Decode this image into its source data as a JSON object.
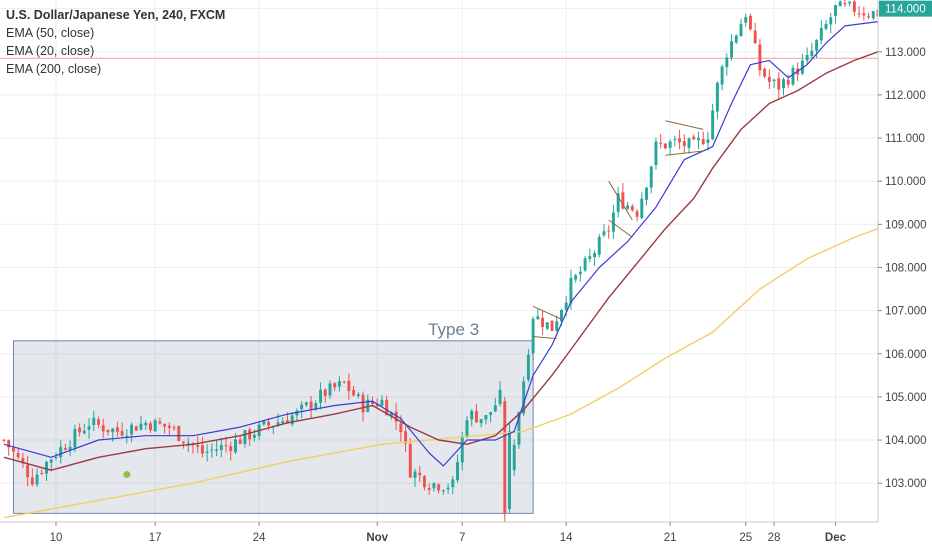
{
  "header": {
    "title": "U.S. Dollar/Japanese Yen, 240, FXCM",
    "indicators": [
      "EMA (50, close)",
      "EMA (20, close)",
      "EMA (200, close)"
    ]
  },
  "chart_data": {
    "type": "candlestick",
    "ylim": [
      102.1,
      114.2
    ],
    "xlim": [
      0,
      185
    ],
    "y_ticks": [
      103,
      104,
      105,
      106,
      107,
      108,
      109,
      110,
      111,
      112,
      113,
      114
    ],
    "y_tick_labels": [
      "103.000",
      "104.000",
      "105.000",
      "106.000",
      "107.000",
      "108.000",
      "109.000",
      "110.000",
      "111.000",
      "112.000",
      "113.000",
      "114.000"
    ],
    "x_ticks": [
      {
        "label": "10",
        "x": 11,
        "bold": false
      },
      {
        "label": "17",
        "x": 32,
        "bold": false
      },
      {
        "label": "24",
        "x": 54,
        "bold": false
      },
      {
        "label": "Nov",
        "x": 79,
        "bold": true
      },
      {
        "label": "7",
        "x": 97,
        "bold": false
      },
      {
        "label": "14",
        "x": 119,
        "bold": false
      },
      {
        "label": "21",
        "x": 141,
        "bold": false
      },
      {
        "label": "25",
        "x": 157,
        "bold": false
      },
      {
        "label": "28",
        "x": 163,
        "bold": false
      },
      {
        "label": "Dec",
        "x": 176,
        "bold": true
      }
    ],
    "price_line": 112.85,
    "last_price_label": "114.000",
    "colors": {
      "up": "#26a69a",
      "down": "#ef5350",
      "ema20": "#3b3bd6",
      "ema50": "#9c3a43",
      "ema200": "#f2cf63",
      "price_line": "#f2a0a0"
    },
    "ohlc_anchors": [
      [
        0,
        104.0
      ],
      [
        6,
        103.1
      ],
      [
        10,
        103.6
      ],
      [
        18,
        104.4
      ],
      [
        24,
        104.2
      ],
      [
        30,
        104.4
      ],
      [
        35,
        104.3
      ],
      [
        42,
        103.7
      ],
      [
        48,
        103.9
      ],
      [
        55,
        104.3
      ],
      [
        62,
        104.6
      ],
      [
        68,
        105.1
      ],
      [
        72,
        105.3
      ],
      [
        76,
        104.8
      ],
      [
        80,
        104.9
      ],
      [
        84,
        104.3
      ],
      [
        86,
        103.3
      ],
      [
        90,
        103.0
      ],
      [
        95,
        102.95
      ],
      [
        98,
        104.6
      ],
      [
        102,
        104.5
      ],
      [
        105,
        105.0
      ],
      [
        106,
        102.3
      ],
      [
        108,
        104.0
      ],
      [
        110,
        105.4
      ],
      [
        112,
        106.9
      ],
      [
        116,
        106.6
      ],
      [
        120,
        107.6
      ],
      [
        124,
        108.2
      ],
      [
        128,
        108.9
      ],
      [
        130,
        109.6
      ],
      [
        134,
        109.3
      ],
      [
        136,
        110.0
      ],
      [
        138,
        110.8
      ],
      [
        142,
        110.9
      ],
      [
        146,
        110.8
      ],
      [
        149,
        111.1
      ],
      [
        151,
        112.2
      ],
      [
        153,
        113.0
      ],
      [
        157,
        113.9
      ],
      [
        160,
        112.6
      ],
      [
        162,
        112.3
      ],
      [
        164,
        112.2
      ],
      [
        167,
        112.5
      ],
      [
        170,
        112.8
      ],
      [
        172,
        113.2
      ],
      [
        174,
        113.6
      ],
      [
        176,
        114.0
      ],
      [
        180,
        114.0
      ],
      [
        183,
        113.9
      ],
      [
        185,
        113.9
      ]
    ],
    "ema20_points": [
      [
        0,
        103.9
      ],
      [
        10,
        103.6
      ],
      [
        20,
        104.0
      ],
      [
        30,
        104.1
      ],
      [
        40,
        104.1
      ],
      [
        50,
        104.3
      ],
      [
        60,
        104.6
      ],
      [
        70,
        104.8
      ],
      [
        78,
        104.9
      ],
      [
        84,
        104.5
      ],
      [
        90,
        103.7
      ],
      [
        93,
        103.4
      ],
      [
        98,
        104.0
      ],
      [
        104,
        104.0
      ],
      [
        108,
        104.2
      ],
      [
        112,
        105.5
      ],
      [
        116,
        106.2
      ],
      [
        120,
        107.2
      ],
      [
        126,
        108.0
      ],
      [
        132,
        108.6
      ],
      [
        138,
        109.4
      ],
      [
        144,
        110.5
      ],
      [
        150,
        110.8
      ],
      [
        154,
        111.8
      ],
      [
        158,
        112.7
      ],
      [
        162,
        112.8
      ],
      [
        166,
        112.4
      ],
      [
        170,
        112.7
      ],
      [
        174,
        113.2
      ],
      [
        178,
        113.6
      ],
      [
        185,
        113.7
      ]
    ],
    "ema50_points": [
      [
        0,
        103.6
      ],
      [
        10,
        103.3
      ],
      [
        20,
        103.6
      ],
      [
        30,
        103.8
      ],
      [
        40,
        103.9
      ],
      [
        50,
        104.1
      ],
      [
        60,
        104.4
      ],
      [
        70,
        104.6
      ],
      [
        78,
        104.8
      ],
      [
        86,
        104.3
      ],
      [
        92,
        104.0
      ],
      [
        98,
        103.9
      ],
      [
        104,
        104.1
      ],
      [
        110,
        104.7
      ],
      [
        116,
        105.5
      ],
      [
        122,
        106.4
      ],
      [
        128,
        107.3
      ],
      [
        134,
        108.1
      ],
      [
        140,
        108.9
      ],
      [
        146,
        109.6
      ],
      [
        150,
        110.3
      ],
      [
        156,
        111.2
      ],
      [
        162,
        111.8
      ],
      [
        168,
        112.1
      ],
      [
        174,
        112.5
      ],
      [
        180,
        112.8
      ],
      [
        185,
        113.0
      ]
    ],
    "ema200_points": [
      [
        0,
        102.2
      ],
      [
        20,
        102.6
      ],
      [
        40,
        103.0
      ],
      [
        60,
        103.5
      ],
      [
        80,
        103.9
      ],
      [
        100,
        104.1
      ],
      [
        110,
        104.2
      ],
      [
        120,
        104.6
      ],
      [
        130,
        105.2
      ],
      [
        140,
        105.9
      ],
      [
        150,
        106.5
      ],
      [
        160,
        107.5
      ],
      [
        170,
        108.2
      ],
      [
        180,
        108.7
      ],
      [
        185,
        108.9
      ]
    ],
    "triangles": [
      {
        "upper": [
          [
            112,
            107.1
          ],
          [
            118,
            106.8
          ]
        ],
        "lower": [
          [
            112,
            106.4
          ],
          [
            117,
            106.35
          ]
        ]
      },
      {
        "upper": [
          [
            128,
            110.0
          ],
          [
            133,
            109.1
          ]
        ],
        "lower": [
          [
            128,
            109.1
          ],
          [
            133,
            108.7
          ]
        ]
      },
      {
        "upper": [
          [
            140,
            111.4
          ],
          [
            148,
            111.2
          ]
        ],
        "lower": [
          [
            140,
            110.6
          ],
          [
            148,
            110.7
          ]
        ]
      }
    ],
    "markers": [
      {
        "x": 26,
        "y": 103.2,
        "color": "#8bc34a"
      }
    ],
    "annotation": {
      "label": "Type 3",
      "box": {
        "x0": 2,
        "x1": 112,
        "y0": 102.3,
        "y1": 106.3
      }
    }
  }
}
